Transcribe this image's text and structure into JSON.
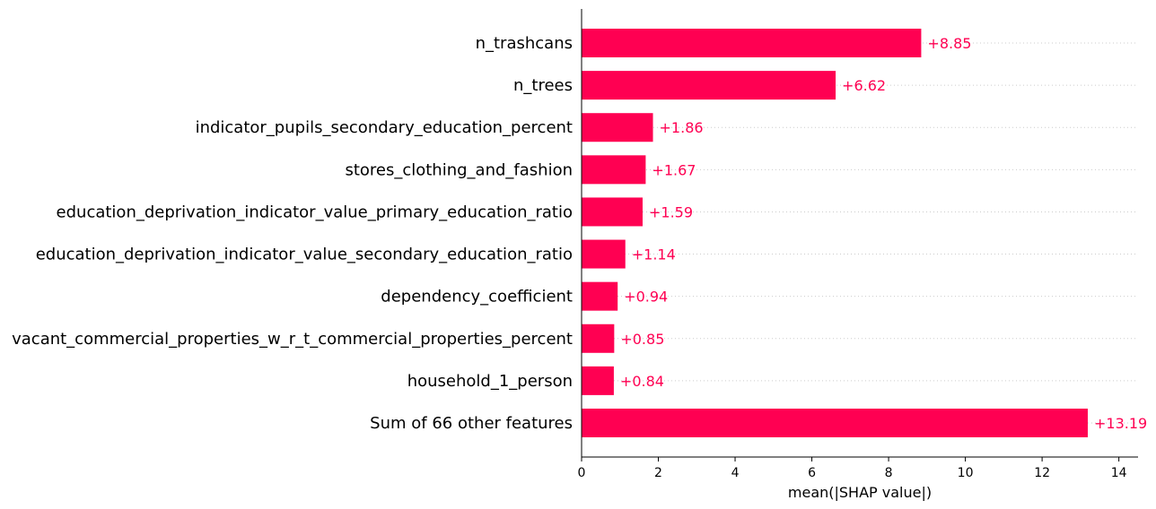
{
  "chart_data": {
    "type": "bar",
    "orientation": "horizontal",
    "categories": [
      "n_trashcans",
      "n_trees",
      "indicator_pupils_secondary_education_percent",
      "stores_clothing_and_fashion",
      "education_deprivation_indicator_value_primary_education_ratio",
      "education_deprivation_indicator_value_secondary_education_ratio",
      "dependency_coefficient",
      "vacant_commercial_properties_w_r_t_commercial_properties_percent",
      "household_1_person",
      "Sum of 66 other features"
    ],
    "values": [
      8.85,
      6.62,
      1.86,
      1.67,
      1.59,
      1.14,
      0.94,
      0.85,
      0.84,
      13.19
    ],
    "value_labels": [
      "+8.85",
      "+6.62",
      "+1.86",
      "+1.67",
      "+1.59",
      "+1.14",
      "+0.94",
      "+0.85",
      "+0.84",
      "+13.19"
    ],
    "xlabel": "mean(|SHAP value|)",
    "xlim": [
      0,
      14.5
    ],
    "xticks": [
      0,
      2,
      4,
      6,
      8,
      10,
      12,
      14
    ],
    "xtick_labels": [
      "0",
      "2",
      "4",
      "6",
      "8",
      "10",
      "12",
      "14"
    ],
    "grid": "horizontal dotted guide lines",
    "bar_color": "#ff0052",
    "label_color": "#ff0052"
  }
}
